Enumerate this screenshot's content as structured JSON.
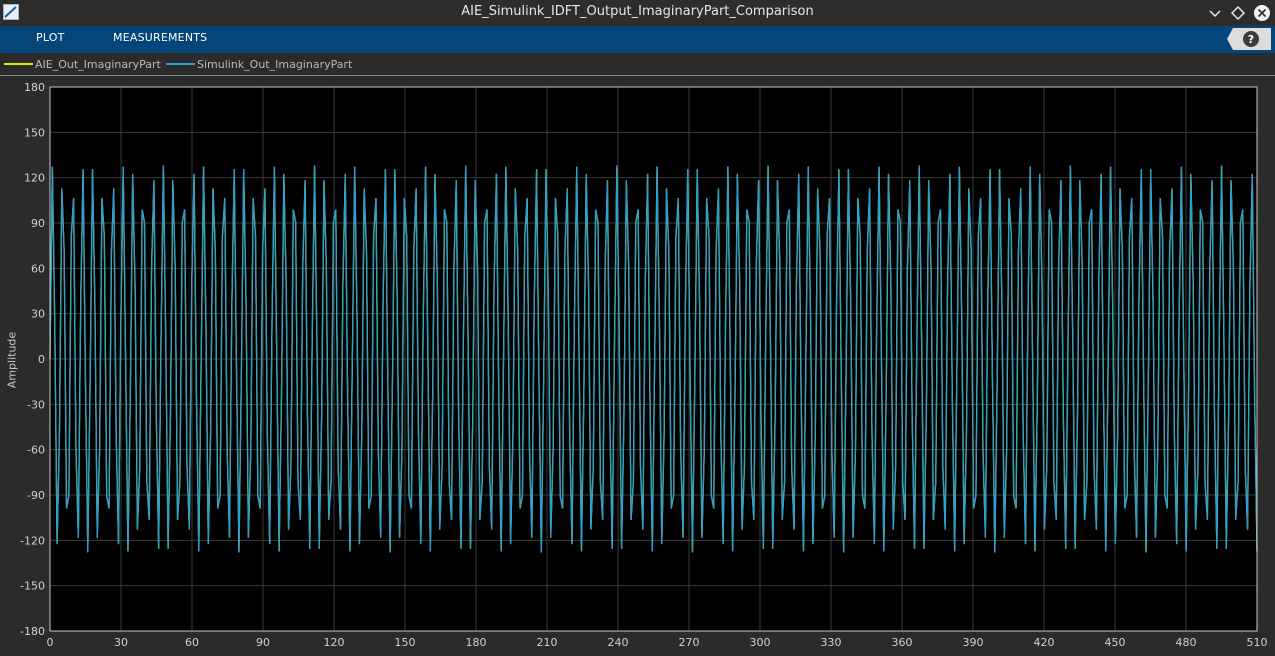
{
  "window": {
    "title": "AIE_Simulink_IDFT_Output_ImaginaryPart_Comparison"
  },
  "toolstrip": {
    "tabs": [
      {
        "label": "PLOT"
      },
      {
        "label": "MEASUREMENTS"
      }
    ],
    "help_label": "?"
  },
  "chart_data": {
    "type": "line",
    "ylabel": "Amplitude",
    "xlim": [
      0,
      510
    ],
    "ylim": [
      -180,
      180
    ],
    "xticks": [
      0,
      30,
      60,
      90,
      120,
      150,
      180,
      210,
      240,
      270,
      300,
      330,
      360,
      390,
      420,
      450,
      480,
      510
    ],
    "yticks": [
      180,
      150,
      120,
      90,
      60,
      30,
      0,
      -30,
      -60,
      -90,
      -120,
      -150,
      -180
    ],
    "grid": true,
    "legend_position": "top-left",
    "background": "#000000",
    "series": [
      {
        "name": "AIE_Out_ImaginaryPart",
        "color": "#e6e600",
        "amplitude": 128,
        "cycles": 120,
        "n_samples": 512
      },
      {
        "name": "Simulink_Out_ImaginaryPart",
        "color": "#2a9fd6",
        "amplitude": 128,
        "cycles": 120,
        "n_samples": 512
      }
    ]
  }
}
